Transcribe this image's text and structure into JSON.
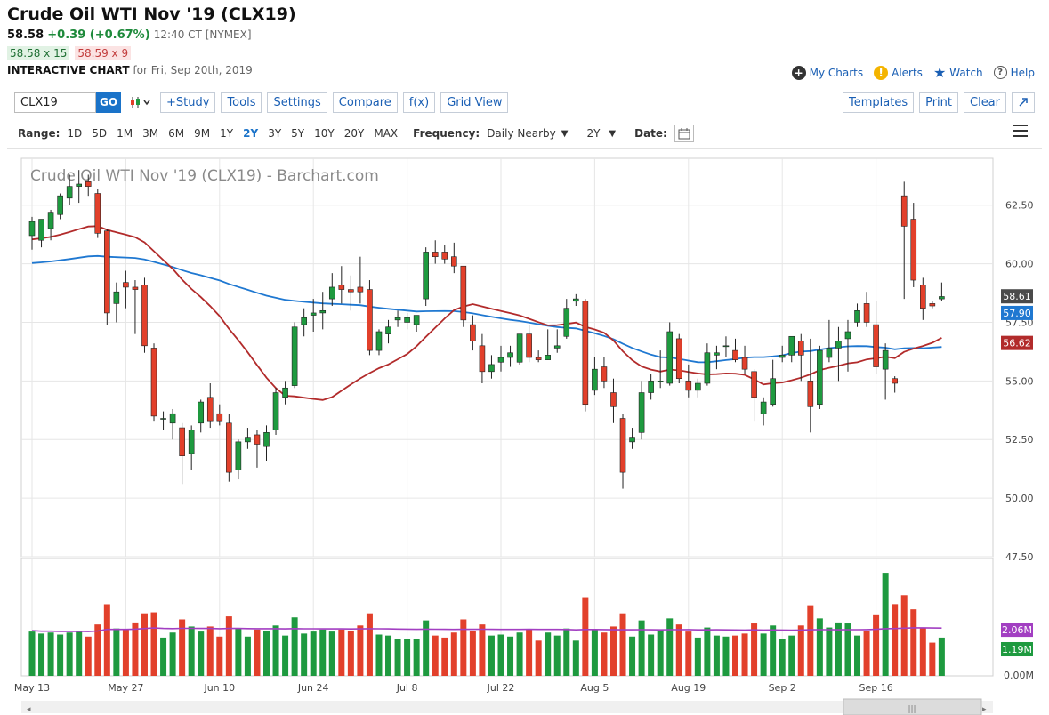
{
  "header": {
    "title": "Crude Oil WTI Nov '19 (CLX19)",
    "last": "58.58",
    "change": "+0.39 (+0.67%)",
    "time": "12:40 CT [NYMEX]",
    "bid": "58.58 x 15",
    "ask": "58.59 x 9",
    "chart_label": "INTERACTIVE CHART",
    "chart_for": "for Fri, Sep 20th, 2019"
  },
  "toplinks": {
    "my_charts": "My Charts",
    "alerts": "Alerts",
    "watch": "Watch",
    "help": "Help"
  },
  "toolbar": {
    "symbol": "CLX19",
    "go": "GO",
    "study": "+Study",
    "tools": "Tools",
    "settings": "Settings",
    "compare": "Compare",
    "fx": "f(x)",
    "grid_view": "Grid View",
    "templates": "Templates",
    "print": "Print",
    "clear": "Clear"
  },
  "rangebar": {
    "range_label": "Range:",
    "ranges": [
      "1D",
      "5D",
      "1M",
      "3M",
      "6M",
      "9M",
      "1Y",
      "2Y",
      "3Y",
      "5Y",
      "10Y",
      "20Y",
      "MAX"
    ],
    "active_range": "2Y",
    "frequency_label": "Frequency:",
    "frequency": "Daily Nearby",
    "period": "2Y",
    "date_label": "Date:"
  },
  "chart_data": {
    "type": "candlestick",
    "watermark": "Crude Oil WTI Nov '19 (CLX19) - Barchart.com",
    "price_ylim": [
      47.5,
      64.5
    ],
    "price_ticks": [
      47.5,
      50.0,
      52.5,
      55.0,
      57.5,
      60.0,
      62.5
    ],
    "price_tick_labels": [
      "47.50",
      "50.00",
      "52.50",
      "55.00",
      "57.50",
      "60.00",
      "62.50"
    ],
    "volume_ylim": [
      0,
      5000000
    ],
    "volume_tick_label": "0.00M",
    "x_labels": [
      {
        "label": "May 13",
        "index": 0
      },
      {
        "label": "May 27",
        "index": 10
      },
      {
        "label": "Jun 10",
        "index": 20
      },
      {
        "label": "Jun 24",
        "index": 30
      },
      {
        "label": "Jul 8",
        "index": 40
      },
      {
        "label": "Jul 22",
        "index": 50
      },
      {
        "label": "Aug 5",
        "index": 60
      },
      {
        "label": "Aug 19",
        "index": 70
      },
      {
        "label": "Sep 2",
        "index": 80
      },
      {
        "label": "Sep 16",
        "index": 90
      }
    ],
    "candles": [
      [
        61.2,
        62.0,
        60.6,
        61.8
      ],
      [
        61.0,
        61.9,
        60.7,
        61.9
      ],
      [
        61.5,
        62.3,
        61.0,
        62.2
      ],
      [
        62.1,
        63.0,
        61.9,
        62.9
      ],
      [
        62.8,
        63.8,
        62.5,
        63.3
      ],
      [
        63.3,
        64.0,
        62.6,
        63.4
      ],
      [
        63.5,
        63.8,
        62.9,
        63.3
      ],
      [
        63.0,
        63.2,
        61.1,
        61.3
      ],
      [
        61.4,
        61.5,
        57.4,
        57.9
      ],
      [
        58.3,
        59.2,
        57.5,
        58.8
      ],
      [
        59.2,
        59.7,
        58.1,
        59.0
      ],
      [
        59.0,
        59.3,
        57.0,
        58.9
      ],
      [
        59.1,
        59.4,
        56.2,
        56.5
      ],
      [
        56.4,
        56.6,
        53.3,
        53.5
      ],
      [
        53.4,
        53.7,
        52.9,
        53.4
      ],
      [
        53.2,
        53.8,
        52.5,
        53.6
      ],
      [
        53.0,
        53.2,
        50.6,
        51.8
      ],
      [
        51.9,
        53.1,
        51.2,
        52.9
      ],
      [
        53.2,
        54.2,
        52.8,
        54.1
      ],
      [
        54.3,
        54.9,
        53.0,
        53.3
      ],
      [
        53.6,
        54.0,
        53.1,
        53.3
      ],
      [
        53.2,
        53.6,
        50.7,
        51.1
      ],
      [
        51.2,
        52.5,
        50.8,
        52.4
      ],
      [
        52.4,
        53.0,
        52.1,
        52.6
      ],
      [
        52.7,
        52.9,
        51.3,
        52.3
      ],
      [
        52.2,
        53.1,
        51.6,
        52.8
      ],
      [
        52.9,
        54.7,
        52.7,
        54.5
      ],
      [
        54.3,
        55.0,
        54.0,
        54.7
      ],
      [
        54.8,
        57.5,
        54.7,
        57.3
      ],
      [
        57.4,
        58.1,
        56.9,
        57.7
      ],
      [
        57.8,
        58.5,
        57.1,
        57.9
      ],
      [
        57.9,
        58.8,
        57.2,
        58.0
      ],
      [
        58.5,
        59.6,
        58.2,
        59.0
      ],
      [
        59.1,
        59.9,
        58.3,
        58.9
      ],
      [
        58.9,
        59.5,
        58.0,
        58.8
      ],
      [
        59.0,
        60.3,
        58.3,
        58.8
      ],
      [
        58.9,
        59.3,
        56.1,
        56.3
      ],
      [
        56.3,
        57.2,
        56.1,
        57.1
      ],
      [
        57.0,
        57.6,
        56.6,
        57.3
      ],
      [
        57.6,
        58.0,
        57.3,
        57.7
      ],
      [
        57.5,
        57.9,
        57.2,
        57.7
      ],
      [
        57.4,
        57.8,
        57.1,
        57.8
      ],
      [
        58.5,
        60.7,
        58.2,
        60.5
      ],
      [
        60.5,
        61.0,
        60.0,
        60.3
      ],
      [
        60.5,
        60.8,
        60.0,
        60.2
      ],
      [
        60.3,
        60.9,
        59.6,
        59.9
      ],
      [
        59.9,
        59.9,
        57.3,
        57.6
      ],
      [
        57.4,
        57.8,
        56.3,
        56.7
      ],
      [
        56.5,
        57.0,
        54.9,
        55.4
      ],
      [
        55.4,
        56.1,
        55.1,
        55.7
      ],
      [
        55.8,
        56.5,
        55.4,
        56.0
      ],
      [
        56.0,
        56.5,
        55.6,
        56.2
      ],
      [
        55.8,
        57.0,
        55.7,
        57.0
      ],
      [
        57.0,
        57.4,
        55.8,
        56.0
      ],
      [
        56.0,
        56.3,
        55.8,
        55.9
      ],
      [
        55.9,
        57.2,
        55.9,
        56.1
      ],
      [
        56.4,
        57.2,
        56.2,
        56.5
      ],
      [
        56.9,
        58.5,
        56.8,
        58.1
      ],
      [
        58.4,
        58.7,
        58.2,
        58.5
      ],
      [
        58.4,
        58.5,
        53.7,
        54.0
      ],
      [
        54.6,
        56.0,
        54.4,
        55.5
      ],
      [
        55.6,
        56.0,
        54.7,
        55.0
      ],
      [
        54.5,
        55.1,
        53.2,
        53.9
      ],
      [
        53.4,
        53.6,
        50.4,
        51.1
      ],
      [
        52.4,
        53.0,
        52.1,
        52.6
      ],
      [
        52.8,
        55.0,
        52.5,
        54.5
      ],
      [
        54.5,
        55.3,
        54.2,
        55.0
      ],
      [
        55.0,
        56.3,
        54.7,
        55.0
      ],
      [
        54.9,
        57.5,
        54.8,
        57.1
      ],
      [
        56.8,
        57.0,
        54.9,
        55.1
      ],
      [
        55.0,
        55.7,
        54.3,
        54.6
      ],
      [
        54.6,
        55.1,
        54.3,
        54.9
      ],
      [
        54.9,
        56.6,
        54.8,
        56.2
      ],
      [
        56.1,
        56.5,
        55.5,
        56.2
      ],
      [
        56.5,
        56.9,
        56.0,
        56.5
      ],
      [
        56.3,
        56.8,
        55.8,
        55.9
      ],
      [
        56.0,
        56.5,
        55.3,
        55.5
      ],
      [
        55.4,
        55.5,
        53.3,
        54.3
      ],
      [
        53.6,
        54.3,
        53.1,
        54.1
      ],
      [
        54.0,
        55.9,
        53.9,
        55.1
      ],
      [
        56.0,
        56.5,
        55.8,
        56.1
      ],
      [
        56.1,
        56.8,
        55.8,
        56.9
      ],
      [
        56.7,
        57.0,
        55.0,
        56.1
      ],
      [
        55.0,
        56.8,
        52.8,
        53.9
      ],
      [
        54.0,
        56.5,
        53.8,
        56.3
      ],
      [
        56.0,
        57.6,
        55.8,
        56.4
      ],
      [
        56.4,
        57.3,
        55.0,
        56.7
      ],
      [
        56.8,
        57.6,
        55.4,
        57.1
      ],
      [
        57.5,
        58.3,
        57.3,
        58.0
      ],
      [
        58.3,
        58.8,
        57.3,
        57.5
      ],
      [
        57.4,
        58.4,
        55.3,
        55.6
      ],
      [
        55.5,
        56.6,
        54.2,
        56.3
      ],
      [
        55.1,
        55.2,
        54.5,
        54.9
      ],
      [
        62.9,
        63.5,
        58.5,
        61.6
      ],
      [
        61.9,
        62.6,
        59.0,
        59.3
      ],
      [
        59.1,
        59.4,
        57.6,
        58.1
      ],
      [
        58.3,
        58.4,
        58.1,
        58.2
      ],
      [
        58.5,
        59.2,
        58.4,
        58.6
      ]
    ],
    "moving_averages": [
      {
        "label": "58.61",
        "color": "#4a4a4a",
        "role": "last price"
      },
      {
        "label": "57.90",
        "color": "#1f78d1",
        "values_start": 60.0,
        "role": "long MA"
      },
      {
        "label": "56.62",
        "color": "#b22b2b",
        "role": "short MA"
      }
    ],
    "volume_labels": [
      {
        "label": "2.06M",
        "color": "#a23fc2"
      },
      {
        "label": "1.19M",
        "color": "#1e9a3f"
      }
    ],
    "colors": {
      "up": "#1e9a3f",
      "down": "#e2402b",
      "grid": "#e6e6e6"
    }
  }
}
